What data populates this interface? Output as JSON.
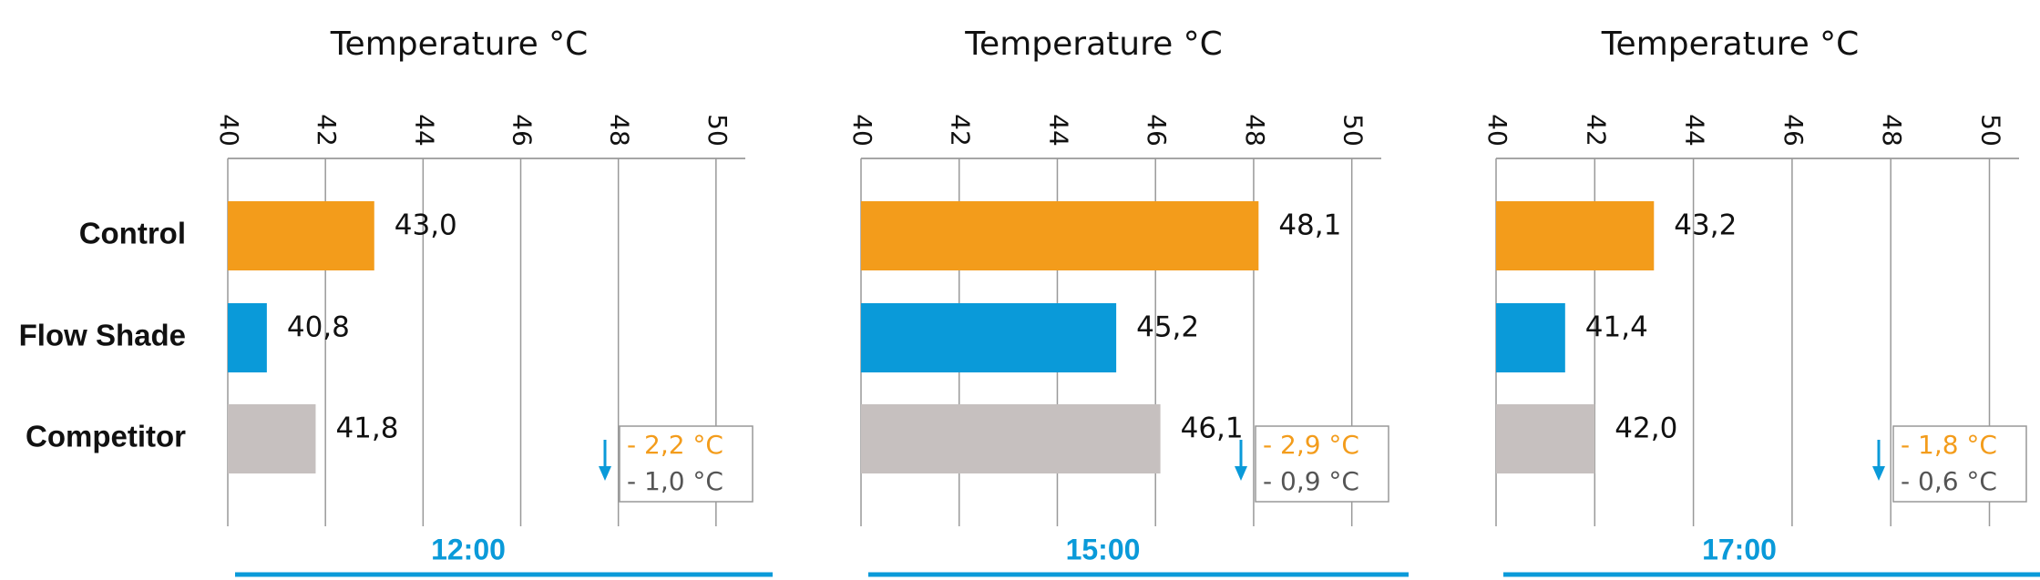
{
  "chart_data": [
    {
      "type": "bar",
      "orientation": "horizontal",
      "title": "Temperature °C",
      "xlabel": "12:00",
      "categories": [
        "Control",
        "Flow Shade",
        "Competitor"
      ],
      "values": [
        43.0,
        40.8,
        41.8
      ],
      "value_labels": [
        "43,0",
        "40,8",
        "41,8"
      ],
      "colors": [
        "#f39c1b",
        "#0a9ad9",
        "#c6c0bf"
      ],
      "xlim": [
        40,
        50.6
      ],
      "xticks": [
        40,
        42,
        44,
        46,
        48,
        50
      ],
      "grid": true,
      "annotations": [
        {
          "text": "- 2,2 °C",
          "color": "#f39c1b"
        },
        {
          "text": "- 1,0 °C",
          "color": "#555555"
        }
      ]
    },
    {
      "type": "bar",
      "orientation": "horizontal",
      "title": "Temperature °C",
      "xlabel": "15:00",
      "categories": [
        null,
        null,
        null
      ],
      "values": [
        48.1,
        45.2,
        46.1
      ],
      "value_labels": [
        "48,1",
        "45,2",
        "46,1"
      ],
      "colors": [
        "#f39c1b",
        "#0a9ad9",
        "#c6c0bf"
      ],
      "xlim": [
        40,
        50.6
      ],
      "xticks": [
        40,
        42,
        44,
        46,
        48,
        50
      ],
      "grid": true,
      "annotations": [
        {
          "text": "- 2,9 °C",
          "color": "#f39c1b"
        },
        {
          "text": "- 0,9 °C",
          "color": "#555555"
        }
      ]
    },
    {
      "type": "bar",
      "orientation": "horizontal",
      "title": "Temperature °C",
      "xlabel": "17:00",
      "categories": [
        null,
        null,
        null
      ],
      "values": [
        43.2,
        41.4,
        42.0
      ],
      "value_labels": [
        "43,2",
        "41,4",
        "42,0"
      ],
      "colors": [
        "#f39c1b",
        "#0a9ad9",
        "#c6c0bf"
      ],
      "xlim": [
        40,
        50.6
      ],
      "xticks": [
        40,
        42,
        44,
        46,
        48,
        50
      ],
      "grid": true,
      "annotations": [
        {
          "text": "- 1,8 °C",
          "color": "#f39c1b"
        },
        {
          "text": "- 0,6 °C",
          "color": "#555555"
        }
      ]
    }
  ]
}
